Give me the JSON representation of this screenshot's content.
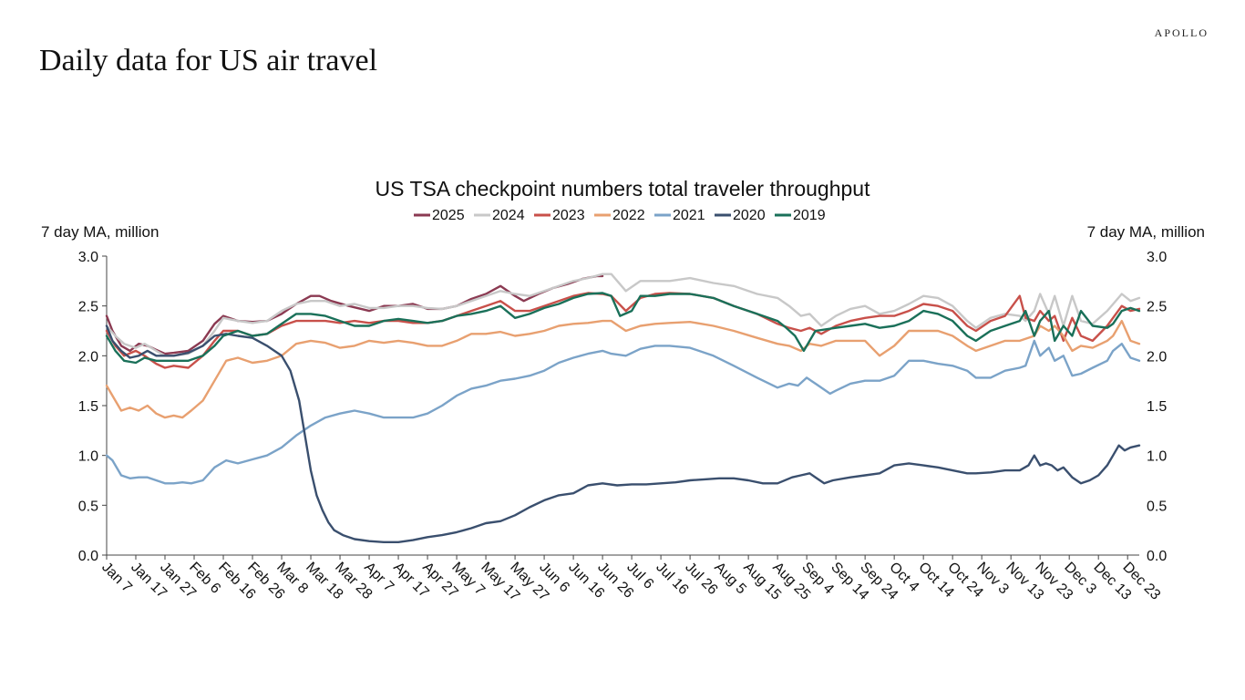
{
  "brand": "APOLLO",
  "page_title": "Daily data for US air travel",
  "chart_data": {
    "type": "line",
    "title": "US TSA checkpoint numbers total traveler throughput",
    "ylabel_left": "7 day MA, million",
    "ylabel_right": "7 day MA, million",
    "ylim": [
      0,
      3.0
    ],
    "y_ticks": [
      0.0,
      0.5,
      1.0,
      1.5,
      2.0,
      2.5,
      3.0
    ],
    "x_tick_labels": [
      "Jan 7",
      "Jan 17",
      "Jan 27",
      "Feb 6",
      "Feb 16",
      "Feb 26",
      "Mar 8",
      "Mar 18",
      "Mar 28",
      "Apr 7",
      "Apr 17",
      "Apr 27",
      "May 7",
      "May 17",
      "May 27",
      "Jun 6",
      "Jun 16",
      "Jun 26",
      "Jul 6",
      "Jul 16",
      "Jul 26",
      "Aug 5",
      "Aug 15",
      "Aug 25",
      "Sep 4",
      "Sep 14",
      "Sep 24",
      "Oct 4",
      "Oct 14",
      "Oct 24",
      "Nov 3",
      "Nov 13",
      "Nov 23",
      "Dec 3",
      "Dec 13",
      "Dec 23"
    ],
    "x_tick_days": [
      7,
      17,
      27,
      37,
      47,
      57,
      67,
      77,
      87,
      97,
      107,
      117,
      127,
      137,
      147,
      157,
      167,
      177,
      187,
      197,
      207,
      217,
      227,
      237,
      247,
      257,
      267,
      277,
      287,
      297,
      307,
      317,
      327,
      337,
      347,
      357
    ],
    "x_range_days": [
      7,
      361
    ],
    "grid": false,
    "legend_position": "top-center",
    "series": [
      {
        "name": "2025",
        "color": "#8b3a52",
        "x": [
          7,
          9,
          12,
          15,
          18,
          21,
          24,
          27,
          30,
          35,
          40,
          44,
          47,
          52,
          57,
          62,
          67,
          72,
          77,
          80,
          84,
          90,
          97,
          102,
          107,
          112,
          117,
          122,
          127,
          132,
          137,
          142,
          147,
          150,
          155,
          160,
          165,
          170,
          175,
          177
        ],
        "y": [
          2.4,
          2.25,
          2.1,
          2.05,
          2.12,
          2.1,
          2.06,
          2.02,
          2.03,
          2.05,
          2.15,
          2.32,
          2.4,
          2.35,
          2.34,
          2.35,
          2.42,
          2.52,
          2.6,
          2.6,
          2.55,
          2.5,
          2.45,
          2.5,
          2.5,
          2.52,
          2.47,
          2.47,
          2.5,
          2.57,
          2.62,
          2.7,
          2.6,
          2.55,
          2.62,
          2.68,
          2.72,
          2.77,
          2.8,
          2.8
        ]
      },
      {
        "name": "2024",
        "color": "#c8c8c8",
        "x": [
          7,
          10,
          13,
          17,
          20,
          24,
          27,
          30,
          35,
          40,
          44,
          47,
          52,
          57,
          62,
          67,
          72,
          77,
          82,
          87,
          92,
          97,
          102,
          107,
          112,
          117,
          122,
          127,
          132,
          137,
          142,
          147,
          152,
          157,
          162,
          167,
          172,
          177,
          180,
          185,
          190,
          195,
          200,
          207,
          215,
          222,
          230,
          237,
          241,
          245,
          248,
          252,
          257,
          262,
          267,
          272,
          277,
          282,
          287,
          292,
          297,
          302,
          305,
          310,
          315,
          320,
          322,
          325,
          327,
          330,
          332,
          335,
          338,
          341,
          345,
          350,
          355,
          358,
          361
        ],
        "y": [
          2.3,
          2.2,
          2.12,
          2.08,
          2.12,
          2.05,
          2.0,
          2.0,
          2.02,
          2.1,
          2.25,
          2.38,
          2.35,
          2.33,
          2.35,
          2.45,
          2.52,
          2.55,
          2.55,
          2.5,
          2.52,
          2.48,
          2.48,
          2.5,
          2.5,
          2.48,
          2.47,
          2.5,
          2.55,
          2.6,
          2.65,
          2.62,
          2.6,
          2.65,
          2.7,
          2.75,
          2.78,
          2.82,
          2.82,
          2.65,
          2.75,
          2.75,
          2.75,
          2.78,
          2.73,
          2.7,
          2.62,
          2.58,
          2.5,
          2.4,
          2.42,
          2.3,
          2.4,
          2.47,
          2.5,
          2.42,
          2.45,
          2.52,
          2.6,
          2.58,
          2.5,
          2.35,
          2.28,
          2.38,
          2.42,
          2.4,
          2.35,
          2.45,
          2.62,
          2.42,
          2.6,
          2.3,
          2.6,
          2.35,
          2.32,
          2.45,
          2.62,
          2.55,
          2.58
        ]
      },
      {
        "name": "2023",
        "color": "#c8504a",
        "x": [
          7,
          10,
          13,
          17,
          20,
          24,
          27,
          30,
          35,
          40,
          44,
          47,
          52,
          57,
          62,
          67,
          72,
          77,
          82,
          87,
          92,
          97,
          102,
          107,
          112,
          117,
          122,
          127,
          132,
          137,
          142,
          147,
          152,
          157,
          162,
          167,
          172,
          177,
          180,
          185,
          190,
          195,
          200,
          207,
          215,
          222,
          230,
          237,
          241,
          245,
          248,
          252,
          257,
          262,
          267,
          272,
          277,
          282,
          287,
          292,
          297,
          302,
          305,
          310,
          315,
          320,
          322,
          325,
          327,
          330,
          332,
          335,
          338,
          341,
          345,
          350,
          355,
          358,
          361
        ],
        "y": [
          2.25,
          2.1,
          2.0,
          2.05,
          2.0,
          1.92,
          1.88,
          1.9,
          1.88,
          2.0,
          2.15,
          2.25,
          2.25,
          2.2,
          2.22,
          2.3,
          2.35,
          2.35,
          2.35,
          2.33,
          2.35,
          2.33,
          2.35,
          2.35,
          2.33,
          2.33,
          2.35,
          2.4,
          2.45,
          2.5,
          2.55,
          2.45,
          2.45,
          2.5,
          2.55,
          2.6,
          2.63,
          2.62,
          2.6,
          2.45,
          2.58,
          2.62,
          2.63,
          2.62,
          2.58,
          2.5,
          2.42,
          2.32,
          2.28,
          2.25,
          2.28,
          2.22,
          2.3,
          2.35,
          2.38,
          2.4,
          2.4,
          2.45,
          2.52,
          2.5,
          2.45,
          2.3,
          2.25,
          2.35,
          2.4,
          2.6,
          2.38,
          2.35,
          2.45,
          2.35,
          2.4,
          2.15,
          2.38,
          2.2,
          2.15,
          2.3,
          2.5,
          2.45,
          2.47
        ]
      },
      {
        "name": "2022",
        "color": "#e8a070",
        "x": [
          7,
          9,
          12,
          15,
          18,
          21,
          24,
          27,
          30,
          33,
          36,
          40,
          44,
          48,
          52,
          57,
          62,
          67,
          72,
          77,
          82,
          87,
          92,
          97,
          102,
          107,
          112,
          117,
          122,
          127,
          132,
          137,
          142,
          147,
          152,
          157,
          162,
          167,
          172,
          177,
          180,
          185,
          190,
          195,
          200,
          207,
          215,
          222,
          230,
          237,
          241,
          245,
          248,
          252,
          257,
          262,
          267,
          272,
          277,
          282,
          287,
          292,
          297,
          302,
          305,
          310,
          315,
          320,
          325,
          327,
          330,
          332,
          335,
          338,
          341,
          345,
          350,
          352,
          355,
          358,
          361
        ],
        "y": [
          1.7,
          1.6,
          1.45,
          1.48,
          1.45,
          1.5,
          1.42,
          1.38,
          1.4,
          1.38,
          1.45,
          1.55,
          1.75,
          1.95,
          1.98,
          1.93,
          1.95,
          2.0,
          2.12,
          2.15,
          2.13,
          2.08,
          2.1,
          2.15,
          2.13,
          2.15,
          2.13,
          2.1,
          2.1,
          2.15,
          2.22,
          2.22,
          2.24,
          2.2,
          2.22,
          2.25,
          2.3,
          2.32,
          2.33,
          2.35,
          2.35,
          2.25,
          2.3,
          2.32,
          2.33,
          2.34,
          2.3,
          2.25,
          2.18,
          2.12,
          2.1,
          2.05,
          2.12,
          2.1,
          2.15,
          2.15,
          2.15,
          2.0,
          2.1,
          2.25,
          2.25,
          2.25,
          2.2,
          2.1,
          2.05,
          2.1,
          2.15,
          2.15,
          2.2,
          2.3,
          2.25,
          2.3,
          2.2,
          2.05,
          2.1,
          2.08,
          2.15,
          2.2,
          2.35,
          2.15,
          2.12
        ]
      },
      {
        "name": "2021",
        "color": "#7ba3c8",
        "x": [
          7,
          9,
          12,
          15,
          18,
          21,
          24,
          27,
          30,
          33,
          36,
          40,
          44,
          48,
          52,
          57,
          62,
          67,
          72,
          77,
          82,
          87,
          92,
          97,
          102,
          107,
          112,
          117,
          122,
          127,
          132,
          137,
          142,
          147,
          152,
          157,
          162,
          167,
          172,
          177,
          180,
          185,
          190,
          195,
          200,
          207,
          215,
          222,
          230,
          237,
          241,
          244,
          247,
          250,
          252,
          255,
          257,
          262,
          267,
          272,
          277,
          282,
          287,
          292,
          297,
          302,
          305,
          310,
          315,
          320,
          322,
          325,
          327,
          330,
          332,
          335,
          338,
          341,
          345,
          350,
          352,
          355,
          358,
          361
        ],
        "y": [
          1.0,
          0.95,
          0.8,
          0.77,
          0.78,
          0.78,
          0.75,
          0.72,
          0.72,
          0.73,
          0.72,
          0.75,
          0.88,
          0.95,
          0.92,
          0.96,
          1.0,
          1.08,
          1.2,
          1.3,
          1.38,
          1.42,
          1.45,
          1.42,
          1.38,
          1.38,
          1.38,
          1.42,
          1.5,
          1.6,
          1.67,
          1.7,
          1.75,
          1.77,
          1.8,
          1.85,
          1.93,
          1.98,
          2.02,
          2.05,
          2.02,
          2.0,
          2.07,
          2.1,
          2.1,
          2.08,
          2.0,
          1.9,
          1.78,
          1.68,
          1.72,
          1.7,
          1.78,
          1.72,
          1.68,
          1.62,
          1.65,
          1.72,
          1.75,
          1.75,
          1.8,
          1.95,
          1.95,
          1.92,
          1.9,
          1.85,
          1.78,
          1.78,
          1.85,
          1.88,
          1.9,
          2.15,
          2.0,
          2.08,
          1.95,
          2.0,
          1.8,
          1.82,
          1.88,
          1.95,
          2.05,
          2.12,
          1.98,
          1.95
        ]
      },
      {
        "name": "2020",
        "color": "#3a4f6e",
        "x": [
          7,
          9,
          12,
          15,
          18,
          21,
          24,
          27,
          30,
          35,
          40,
          44,
          48,
          52,
          57,
          62,
          67,
          70,
          73,
          75,
          77,
          79,
          81,
          83,
          85,
          88,
          92,
          97,
          102,
          107,
          112,
          117,
          122,
          127,
          132,
          137,
          142,
          147,
          152,
          157,
          162,
          167,
          172,
          177,
          182,
          187,
          192,
          197,
          202,
          207,
          212,
          217,
          222,
          227,
          232,
          237,
          242,
          245,
          248,
          250,
          253,
          256,
          262,
          267,
          272,
          277,
          282,
          287,
          292,
          297,
          302,
          305,
          310,
          315,
          320,
          323,
          325,
          327,
          329,
          331,
          333,
          335,
          338,
          341,
          344,
          347,
          350,
          352,
          354,
          356,
          358,
          361
        ],
        "y": [
          2.3,
          2.15,
          2.05,
          1.98,
          2.0,
          2.05,
          2.0,
          2.0,
          2.0,
          2.03,
          2.1,
          2.2,
          2.22,
          2.2,
          2.18,
          2.1,
          2.0,
          1.85,
          1.55,
          1.2,
          0.85,
          0.6,
          0.45,
          0.33,
          0.25,
          0.2,
          0.16,
          0.14,
          0.13,
          0.13,
          0.15,
          0.18,
          0.2,
          0.23,
          0.27,
          0.32,
          0.34,
          0.4,
          0.48,
          0.55,
          0.6,
          0.62,
          0.7,
          0.72,
          0.7,
          0.71,
          0.71,
          0.72,
          0.73,
          0.75,
          0.76,
          0.77,
          0.77,
          0.75,
          0.72,
          0.72,
          0.78,
          0.8,
          0.82,
          0.78,
          0.72,
          0.75,
          0.78,
          0.8,
          0.82,
          0.9,
          0.92,
          0.9,
          0.88,
          0.85,
          0.82,
          0.82,
          0.83,
          0.85,
          0.85,
          0.9,
          1.0,
          0.9,
          0.92,
          0.9,
          0.85,
          0.88,
          0.78,
          0.72,
          0.75,
          0.8,
          0.9,
          1.0,
          1.1,
          1.05,
          1.08,
          1.1
        ]
      },
      {
        "name": "2019",
        "color": "#1a7059",
        "x": [
          7,
          10,
          13,
          17,
          20,
          24,
          27,
          30,
          35,
          40,
          44,
          47,
          52,
          57,
          62,
          67,
          72,
          77,
          82,
          87,
          92,
          97,
          102,
          107,
          112,
          117,
          122,
          127,
          132,
          137,
          142,
          147,
          152,
          157,
          162,
          167,
          172,
          177,
          180,
          183,
          187,
          190,
          195,
          200,
          207,
          215,
          222,
          230,
          237,
          240,
          243,
          246,
          250,
          257,
          262,
          267,
          272,
          277,
          282,
          287,
          292,
          297,
          302,
          305,
          310,
          315,
          320,
          322,
          325,
          327,
          330,
          332,
          335,
          338,
          341,
          345,
          350,
          352,
          355,
          358,
          361
        ],
        "y": [
          2.2,
          2.05,
          1.95,
          1.93,
          1.98,
          1.95,
          1.95,
          1.95,
          1.95,
          2.0,
          2.1,
          2.2,
          2.25,
          2.2,
          2.22,
          2.32,
          2.42,
          2.42,
          2.4,
          2.35,
          2.3,
          2.3,
          2.35,
          2.37,
          2.35,
          2.33,
          2.35,
          2.4,
          2.42,
          2.45,
          2.5,
          2.38,
          2.42,
          2.48,
          2.52,
          2.58,
          2.62,
          2.63,
          2.6,
          2.4,
          2.45,
          2.6,
          2.6,
          2.62,
          2.62,
          2.58,
          2.5,
          2.42,
          2.35,
          2.28,
          2.2,
          2.05,
          2.25,
          2.28,
          2.3,
          2.32,
          2.28,
          2.3,
          2.35,
          2.45,
          2.42,
          2.35,
          2.2,
          2.15,
          2.25,
          2.3,
          2.35,
          2.45,
          2.2,
          2.35,
          2.45,
          2.15,
          2.3,
          2.2,
          2.45,
          2.3,
          2.28,
          2.32,
          2.45,
          2.48,
          2.45
        ]
      }
    ]
  }
}
